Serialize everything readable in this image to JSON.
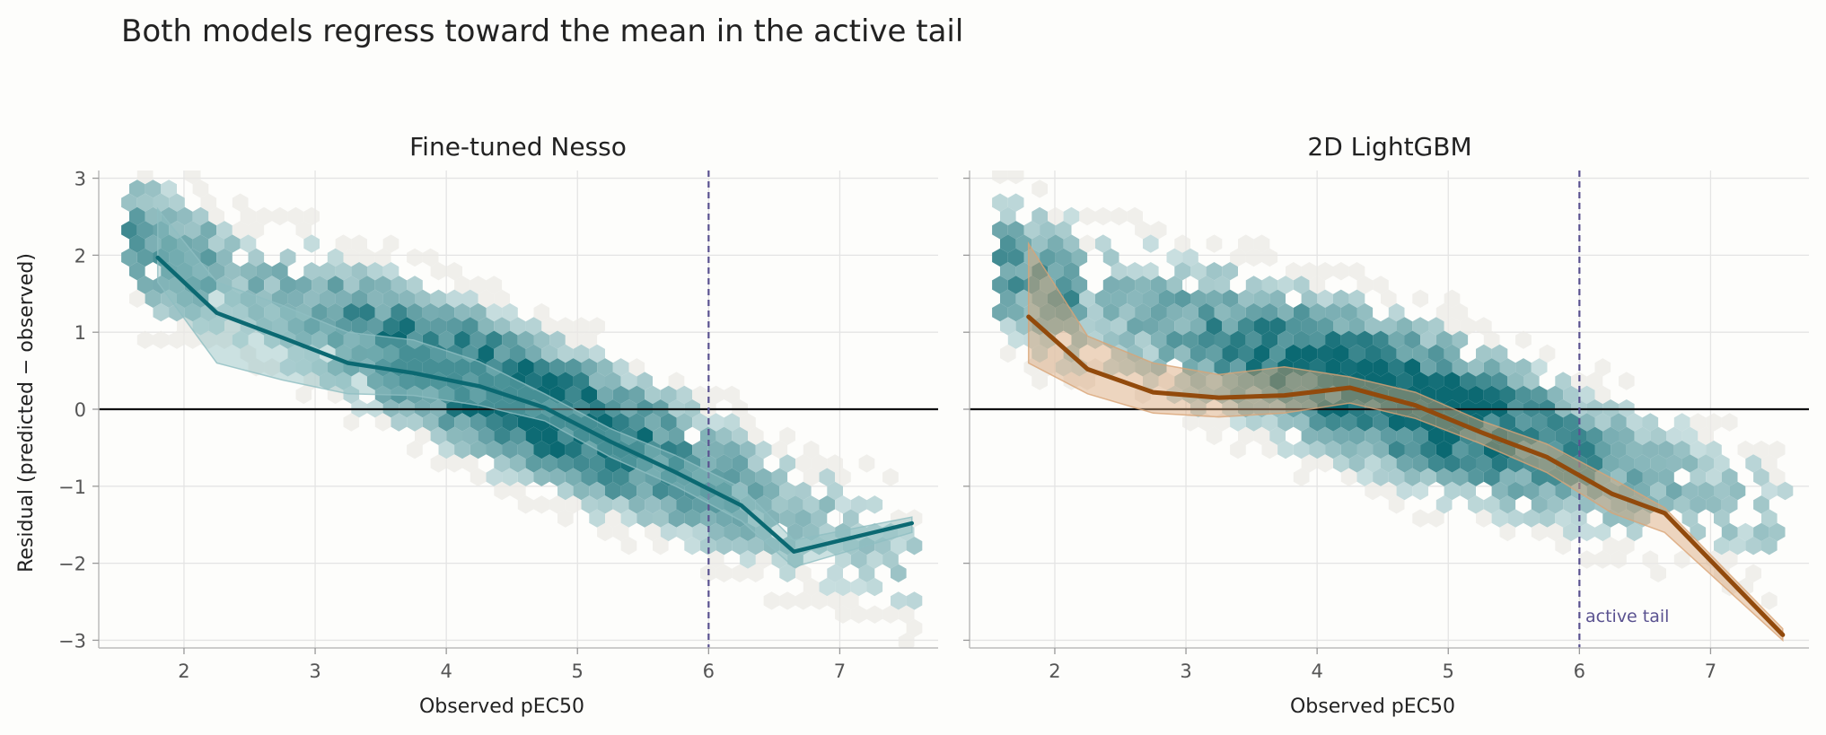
{
  "title": "Both models regress toward the mean in the active tail",
  "colors": {
    "hex_low": "#ebe9e6",
    "hex_high": "#0b6972",
    "nesso_line": "#0b6972",
    "nesso_band": "#8fbec2",
    "lgbm_line": "#924a0c",
    "lgbm_band": "#d9a476",
    "threshold": "#5a5290",
    "zero_line": "#111111",
    "grid": "#e4e4e4"
  },
  "chart_data": [
    {
      "type": "hexbin-line",
      "title": "Fine-tuned Nesso",
      "xlabel": "Observed pEC50",
      "ylabel": "Residual (predicted − observed)",
      "xlim": [
        1.35,
        7.75
      ],
      "ylim": [
        -3.1,
        3.1
      ],
      "xticks": [
        2,
        3,
        4,
        5,
        6,
        7
      ],
      "yticks": [
        -3,
        -2,
        -1,
        0,
        1,
        2,
        3
      ],
      "ytick_labels": [
        "−3",
        "−2",
        "−1",
        "0",
        "1",
        "2",
        "3"
      ],
      "grid": true,
      "reference_line_y": 0,
      "threshold_x": 6,
      "line": {
        "x": [
          1.8,
          2.25,
          2.75,
          3.25,
          3.75,
          4.25,
          4.75,
          5.25,
          5.75,
          6.25,
          6.65,
          7.55
        ],
        "y": [
          1.97,
          1.25,
          0.93,
          0.6,
          0.47,
          0.3,
          0.02,
          -0.42,
          -0.82,
          -1.25,
          -1.85,
          -1.48
        ],
        "y_low": [
          1.65,
          0.6,
          0.38,
          0.2,
          0.18,
          0.05,
          -0.15,
          -0.62,
          -1.0,
          -1.45,
          -2.05,
          -1.6
        ],
        "y_high": [
          2.6,
          1.65,
          1.35,
          1.0,
          0.9,
          0.62,
          0.2,
          -0.25,
          -0.6,
          -1.02,
          -1.7,
          -1.4
        ]
      }
    },
    {
      "type": "hexbin-line",
      "title": "2D LightGBM",
      "xlabel": "Observed pEC50",
      "xlim": [
        1.35,
        7.75
      ],
      "ylim": [
        -3.1,
        3.1
      ],
      "xticks": [
        2,
        3,
        4,
        5,
        6,
        7
      ],
      "yticks": [
        -3,
        -2,
        -1,
        0,
        1,
        2,
        3
      ],
      "grid": true,
      "reference_line_y": 0,
      "threshold_x": 6,
      "annotation": "active tail",
      "line": {
        "x": [
          1.8,
          2.25,
          2.75,
          3.25,
          3.75,
          4.25,
          4.75,
          5.25,
          5.75,
          6.25,
          6.65,
          7.55
        ],
        "y": [
          1.2,
          0.52,
          0.22,
          0.15,
          0.18,
          0.28,
          0.05,
          -0.3,
          -0.62,
          -1.1,
          -1.35,
          -2.93
        ],
        "y_low": [
          0.6,
          0.2,
          -0.05,
          -0.1,
          -0.05,
          0.08,
          -0.12,
          -0.45,
          -0.82,
          -1.35,
          -1.6,
          -3.0
        ],
        "y_high": [
          2.15,
          0.95,
          0.6,
          0.45,
          0.55,
          0.42,
          0.22,
          -0.15,
          -0.45,
          -0.9,
          -1.28,
          -2.85
        ]
      }
    }
  ]
}
